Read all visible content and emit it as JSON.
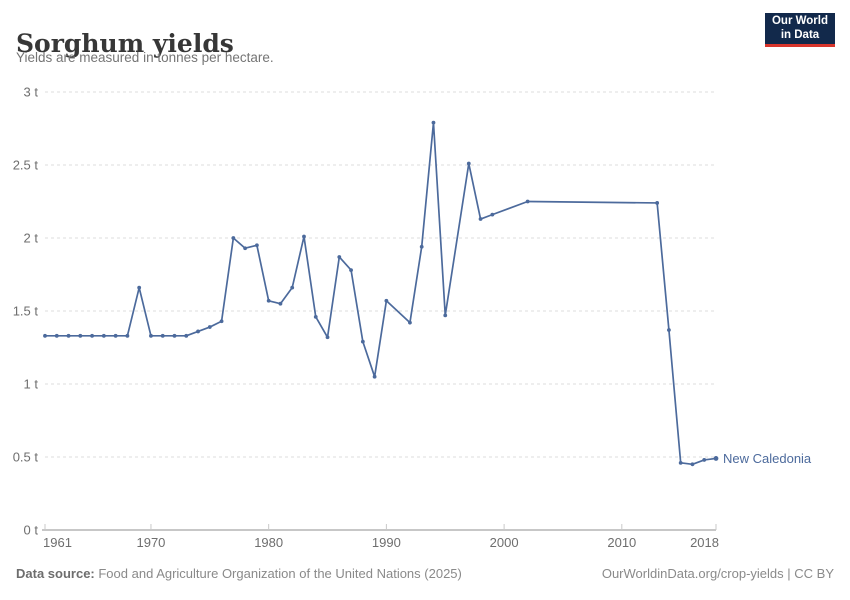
{
  "header": {
    "title": "Sorghum yields",
    "subtitle": "Yields are measured in tonnes per hectare.",
    "logo": {
      "line1": "Our World",
      "line2": "in Data"
    }
  },
  "footer": {
    "source_label": "Data source:",
    "source_text": " Food and Agriculture Organization of the United Nations (2025)",
    "link_text": "OurWorldinData.org/crop-yields | CC BY"
  },
  "chart_data": {
    "type": "line",
    "title": "Sorghum yields",
    "subtitle": "Yields are measured in tonnes per hectare.",
    "unit": "tonnes per hectare",
    "xlabel": "",
    "ylabel": "",
    "xlim": [
      1961,
      2018
    ],
    "ylim": [
      0,
      3
    ],
    "grid": "horizontal-dashed",
    "legend_position": "end-of-line-label",
    "x_ticks": [
      {
        "value": 1961,
        "label": "1961"
      },
      {
        "value": 1970,
        "label": "1970"
      },
      {
        "value": 1980,
        "label": "1980"
      },
      {
        "value": 1990,
        "label": "1990"
      },
      {
        "value": 2000,
        "label": "2000"
      },
      {
        "value": 2010,
        "label": "2010"
      },
      {
        "value": 2018,
        "label": "2018"
      }
    ],
    "y_ticks": [
      {
        "value": 0,
        "label": "0 t"
      },
      {
        "value": 0.5,
        "label": "0.5 t"
      },
      {
        "value": 1,
        "label": "1 t"
      },
      {
        "value": 1.5,
        "label": "1.5 t"
      },
      {
        "value": 2,
        "label": "2 t"
      },
      {
        "value": 2.5,
        "label": "2.5 t"
      },
      {
        "value": 3,
        "label": "3 t"
      }
    ],
    "series": [
      {
        "name": "New Caledonia",
        "color": "#4C6A9C",
        "points": [
          [
            1961,
            1.33
          ],
          [
            1962,
            1.33
          ],
          [
            1963,
            1.33
          ],
          [
            1964,
            1.33
          ],
          [
            1965,
            1.33
          ],
          [
            1966,
            1.33
          ],
          [
            1967,
            1.33
          ],
          [
            1968,
            1.33
          ],
          [
            1969,
            1.66
          ],
          [
            1970,
            1.33
          ],
          [
            1971,
            1.33
          ],
          [
            1972,
            1.33
          ],
          [
            1973,
            1.33
          ],
          [
            1974,
            1.36
          ],
          [
            1975,
            1.39
          ],
          [
            1976,
            1.43
          ],
          [
            1977,
            2.0
          ],
          [
            1978,
            1.93
          ],
          [
            1979,
            1.95
          ],
          [
            1980,
            1.57
          ],
          [
            1981,
            1.55
          ],
          [
            1982,
            1.66
          ],
          [
            1983,
            2.01
          ],
          [
            1984,
            1.46
          ],
          [
            1985,
            1.32
          ],
          [
            1986,
            1.87
          ],
          [
            1987,
            1.78
          ],
          [
            1988,
            1.29
          ],
          [
            1989,
            1.05
          ],
          [
            1990,
            1.57
          ],
          [
            1992,
            1.42
          ],
          [
            1993,
            1.94
          ],
          [
            1994,
            2.79
          ],
          [
            1995,
            1.47
          ],
          [
            1997,
            2.51
          ],
          [
            1998,
            2.13
          ],
          [
            1999,
            2.16
          ],
          [
            2002,
            2.25
          ],
          [
            2013,
            2.24
          ],
          [
            2014,
            1.37
          ],
          [
            2015,
            0.46
          ],
          [
            2016,
            0.45
          ],
          [
            2017,
            0.48
          ],
          [
            2018,
            0.49
          ]
        ]
      }
    ],
    "colors": {
      "gridline": "#dedede",
      "axis_line": "#8f8f8f",
      "tick_mark": "#c9c9c9",
      "tick_label": "#6e6e6e"
    }
  }
}
